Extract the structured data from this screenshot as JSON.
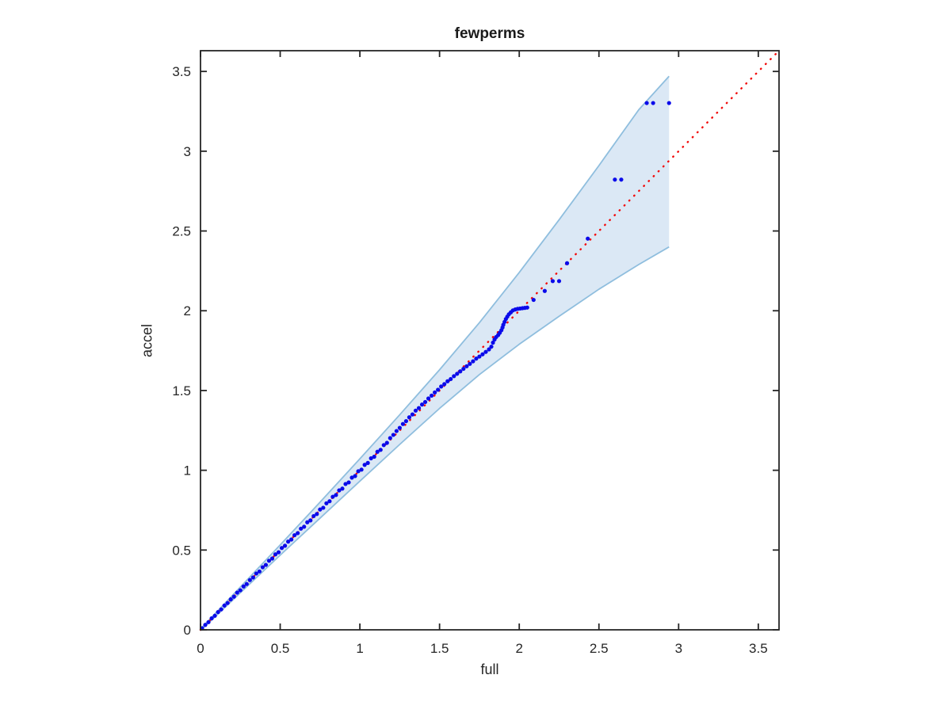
{
  "chart_data": {
    "type": "scatter",
    "title": "fewperms",
    "xlabel": "full",
    "ylabel": "accel",
    "xlim": [
      0,
      3.63
    ],
    "ylim": [
      0,
      3.63
    ],
    "xticks": [
      0,
      0.5,
      1,
      1.5,
      2,
      2.5,
      3,
      3.5
    ],
    "yticks": [
      0,
      0.5,
      1,
      1.5,
      2,
      2.5,
      3,
      3.5
    ],
    "xtick_labels": [
      "0",
      "0.5",
      "1",
      "1.5",
      "2",
      "2.5",
      "3",
      "3.5"
    ],
    "ytick_labels": [
      "0",
      "0.5",
      "1",
      "1.5",
      "2",
      "2.5",
      "3",
      "3.5"
    ],
    "grid": false,
    "box": true,
    "legend_position": "none",
    "axis_color": "#262626",
    "series": [
      {
        "name": "confidence-band",
        "type": "band",
        "fill_color": "#dbe8f5",
        "edge_color": "#8fbede",
        "upper": [
          [
            0,
            0.005
          ],
          [
            0.25,
            0.268
          ],
          [
            0.5,
            0.532
          ],
          [
            0.75,
            0.8
          ],
          [
            1.0,
            1.072
          ],
          [
            1.25,
            1.348
          ],
          [
            1.5,
            1.63
          ],
          [
            1.75,
            1.925
          ],
          [
            2.0,
            2.24
          ],
          [
            2.25,
            2.57
          ],
          [
            2.5,
            2.91
          ],
          [
            2.75,
            3.26
          ],
          [
            2.94,
            3.47
          ]
        ],
        "lower": [
          [
            0,
            -0.005
          ],
          [
            0.25,
            0.232
          ],
          [
            0.5,
            0.468
          ],
          [
            0.75,
            0.7
          ],
          [
            1.0,
            0.932
          ],
          [
            1.25,
            1.162
          ],
          [
            1.5,
            1.388
          ],
          [
            1.75,
            1.6
          ],
          [
            2.0,
            1.79
          ],
          [
            2.25,
            1.965
          ],
          [
            2.5,
            2.135
          ],
          [
            2.75,
            2.29
          ],
          [
            2.94,
            2.4
          ]
        ]
      },
      {
        "name": "identity-reference-line",
        "type": "line",
        "style": "dotted",
        "color": "#f20a0a",
        "points": [
          [
            0,
            0
          ],
          [
            3.63,
            3.63
          ]
        ]
      },
      {
        "name": "qq-points",
        "type": "scatter",
        "marker": "filled-circle",
        "color": "#0b0bea",
        "points": [
          [
            0.01,
            0.01
          ],
          [
            0.03,
            0.031
          ],
          [
            0.05,
            0.048
          ],
          [
            0.07,
            0.072
          ],
          [
            0.09,
            0.088
          ],
          [
            0.11,
            0.111
          ],
          [
            0.13,
            0.128
          ],
          [
            0.15,
            0.152
          ],
          [
            0.17,
            0.168
          ],
          [
            0.19,
            0.191
          ],
          [
            0.21,
            0.208
          ],
          [
            0.23,
            0.233
          ],
          [
            0.25,
            0.248
          ],
          [
            0.27,
            0.272
          ],
          [
            0.29,
            0.287
          ],
          [
            0.31,
            0.312
          ],
          [
            0.33,
            0.328
          ],
          [
            0.35,
            0.353
          ],
          [
            0.37,
            0.366
          ],
          [
            0.39,
            0.392
          ],
          [
            0.41,
            0.407
          ],
          [
            0.43,
            0.433
          ],
          [
            0.45,
            0.447
          ],
          [
            0.47,
            0.473
          ],
          [
            0.49,
            0.486
          ],
          [
            0.51,
            0.513
          ],
          [
            0.53,
            0.527
          ],
          [
            0.55,
            0.553
          ],
          [
            0.57,
            0.566
          ],
          [
            0.59,
            0.593
          ],
          [
            0.61,
            0.606
          ],
          [
            0.63,
            0.634
          ],
          [
            0.65,
            0.646
          ],
          [
            0.67,
            0.674
          ],
          [
            0.69,
            0.686
          ],
          [
            0.71,
            0.713
          ],
          [
            0.73,
            0.726
          ],
          [
            0.75,
            0.754
          ],
          [
            0.77,
            0.765
          ],
          [
            0.79,
            0.793
          ],
          [
            0.81,
            0.806
          ],
          [
            0.83,
            0.834
          ],
          [
            0.85,
            0.845
          ],
          [
            0.87,
            0.874
          ],
          [
            0.89,
            0.885
          ],
          [
            0.91,
            0.914
          ],
          [
            0.93,
            0.924
          ],
          [
            0.95,
            0.954
          ],
          [
            0.97,
            0.964
          ],
          [
            0.99,
            0.994
          ],
          [
            1.01,
            1.004
          ],
          [
            1.03,
            1.034
          ],
          [
            1.05,
            1.046
          ],
          [
            1.07,
            1.075
          ],
          [
            1.09,
            1.085
          ],
          [
            1.11,
            1.116
          ],
          [
            1.13,
            1.128
          ],
          [
            1.15,
            1.158
          ],
          [
            1.17,
            1.172
          ],
          [
            1.19,
            1.202
          ],
          [
            1.21,
            1.222
          ],
          [
            1.23,
            1.246
          ],
          [
            1.25,
            1.266
          ],
          [
            1.27,
            1.29
          ],
          [
            1.29,
            1.308
          ],
          [
            1.31,
            1.332
          ],
          [
            1.33,
            1.35
          ],
          [
            1.35,
            1.374
          ],
          [
            1.37,
            1.39
          ],
          [
            1.39,
            1.412
          ],
          [
            1.41,
            1.428
          ],
          [
            1.43,
            1.45
          ],
          [
            1.45,
            1.468
          ],
          [
            1.47,
            1.488
          ],
          [
            1.49,
            1.505
          ],
          [
            1.51,
            1.525
          ],
          [
            1.53,
            1.54
          ],
          [
            1.55,
            1.558
          ],
          [
            1.57,
            1.572
          ],
          [
            1.59,
            1.59
          ],
          [
            1.61,
            1.605
          ],
          [
            1.63,
            1.62
          ],
          [
            1.65,
            1.636
          ],
          [
            1.67,
            1.652
          ],
          [
            1.69,
            1.667
          ],
          [
            1.71,
            1.683
          ],
          [
            1.73,
            1.7
          ],
          [
            1.75,
            1.713
          ],
          [
            1.77,
            1.727
          ],
          [
            1.79,
            1.742
          ],
          [
            1.81,
            1.758
          ],
          [
            1.825,
            1.775
          ],
          [
            1.835,
            1.8
          ],
          [
            1.845,
            1.82
          ],
          [
            1.855,
            1.835
          ],
          [
            1.868,
            1.848
          ],
          [
            1.878,
            1.862
          ],
          [
            1.888,
            1.878
          ],
          [
            1.895,
            1.895
          ],
          [
            1.9,
            1.912
          ],
          [
            1.908,
            1.93
          ],
          [
            1.916,
            1.948
          ],
          [
            1.925,
            1.963
          ],
          [
            1.935,
            1.978
          ],
          [
            1.947,
            1.99
          ],
          [
            1.96,
            2.002
          ],
          [
            1.975,
            2.008
          ],
          [
            1.99,
            2.012
          ],
          [
            2.005,
            2.014
          ],
          [
            2.02,
            2.016
          ],
          [
            2.035,
            2.018
          ],
          [
            2.05,
            2.02
          ],
          [
            2.09,
            2.068
          ],
          [
            2.16,
            2.124
          ],
          [
            2.21,
            2.186
          ],
          [
            2.25,
            2.186
          ],
          [
            2.3,
            2.298
          ],
          [
            2.43,
            2.452
          ],
          [
            2.6,
            2.822
          ],
          [
            2.64,
            2.822
          ],
          [
            2.8,
            3.302
          ],
          [
            2.84,
            3.302
          ],
          [
            2.94,
            3.302
          ]
        ]
      }
    ]
  }
}
